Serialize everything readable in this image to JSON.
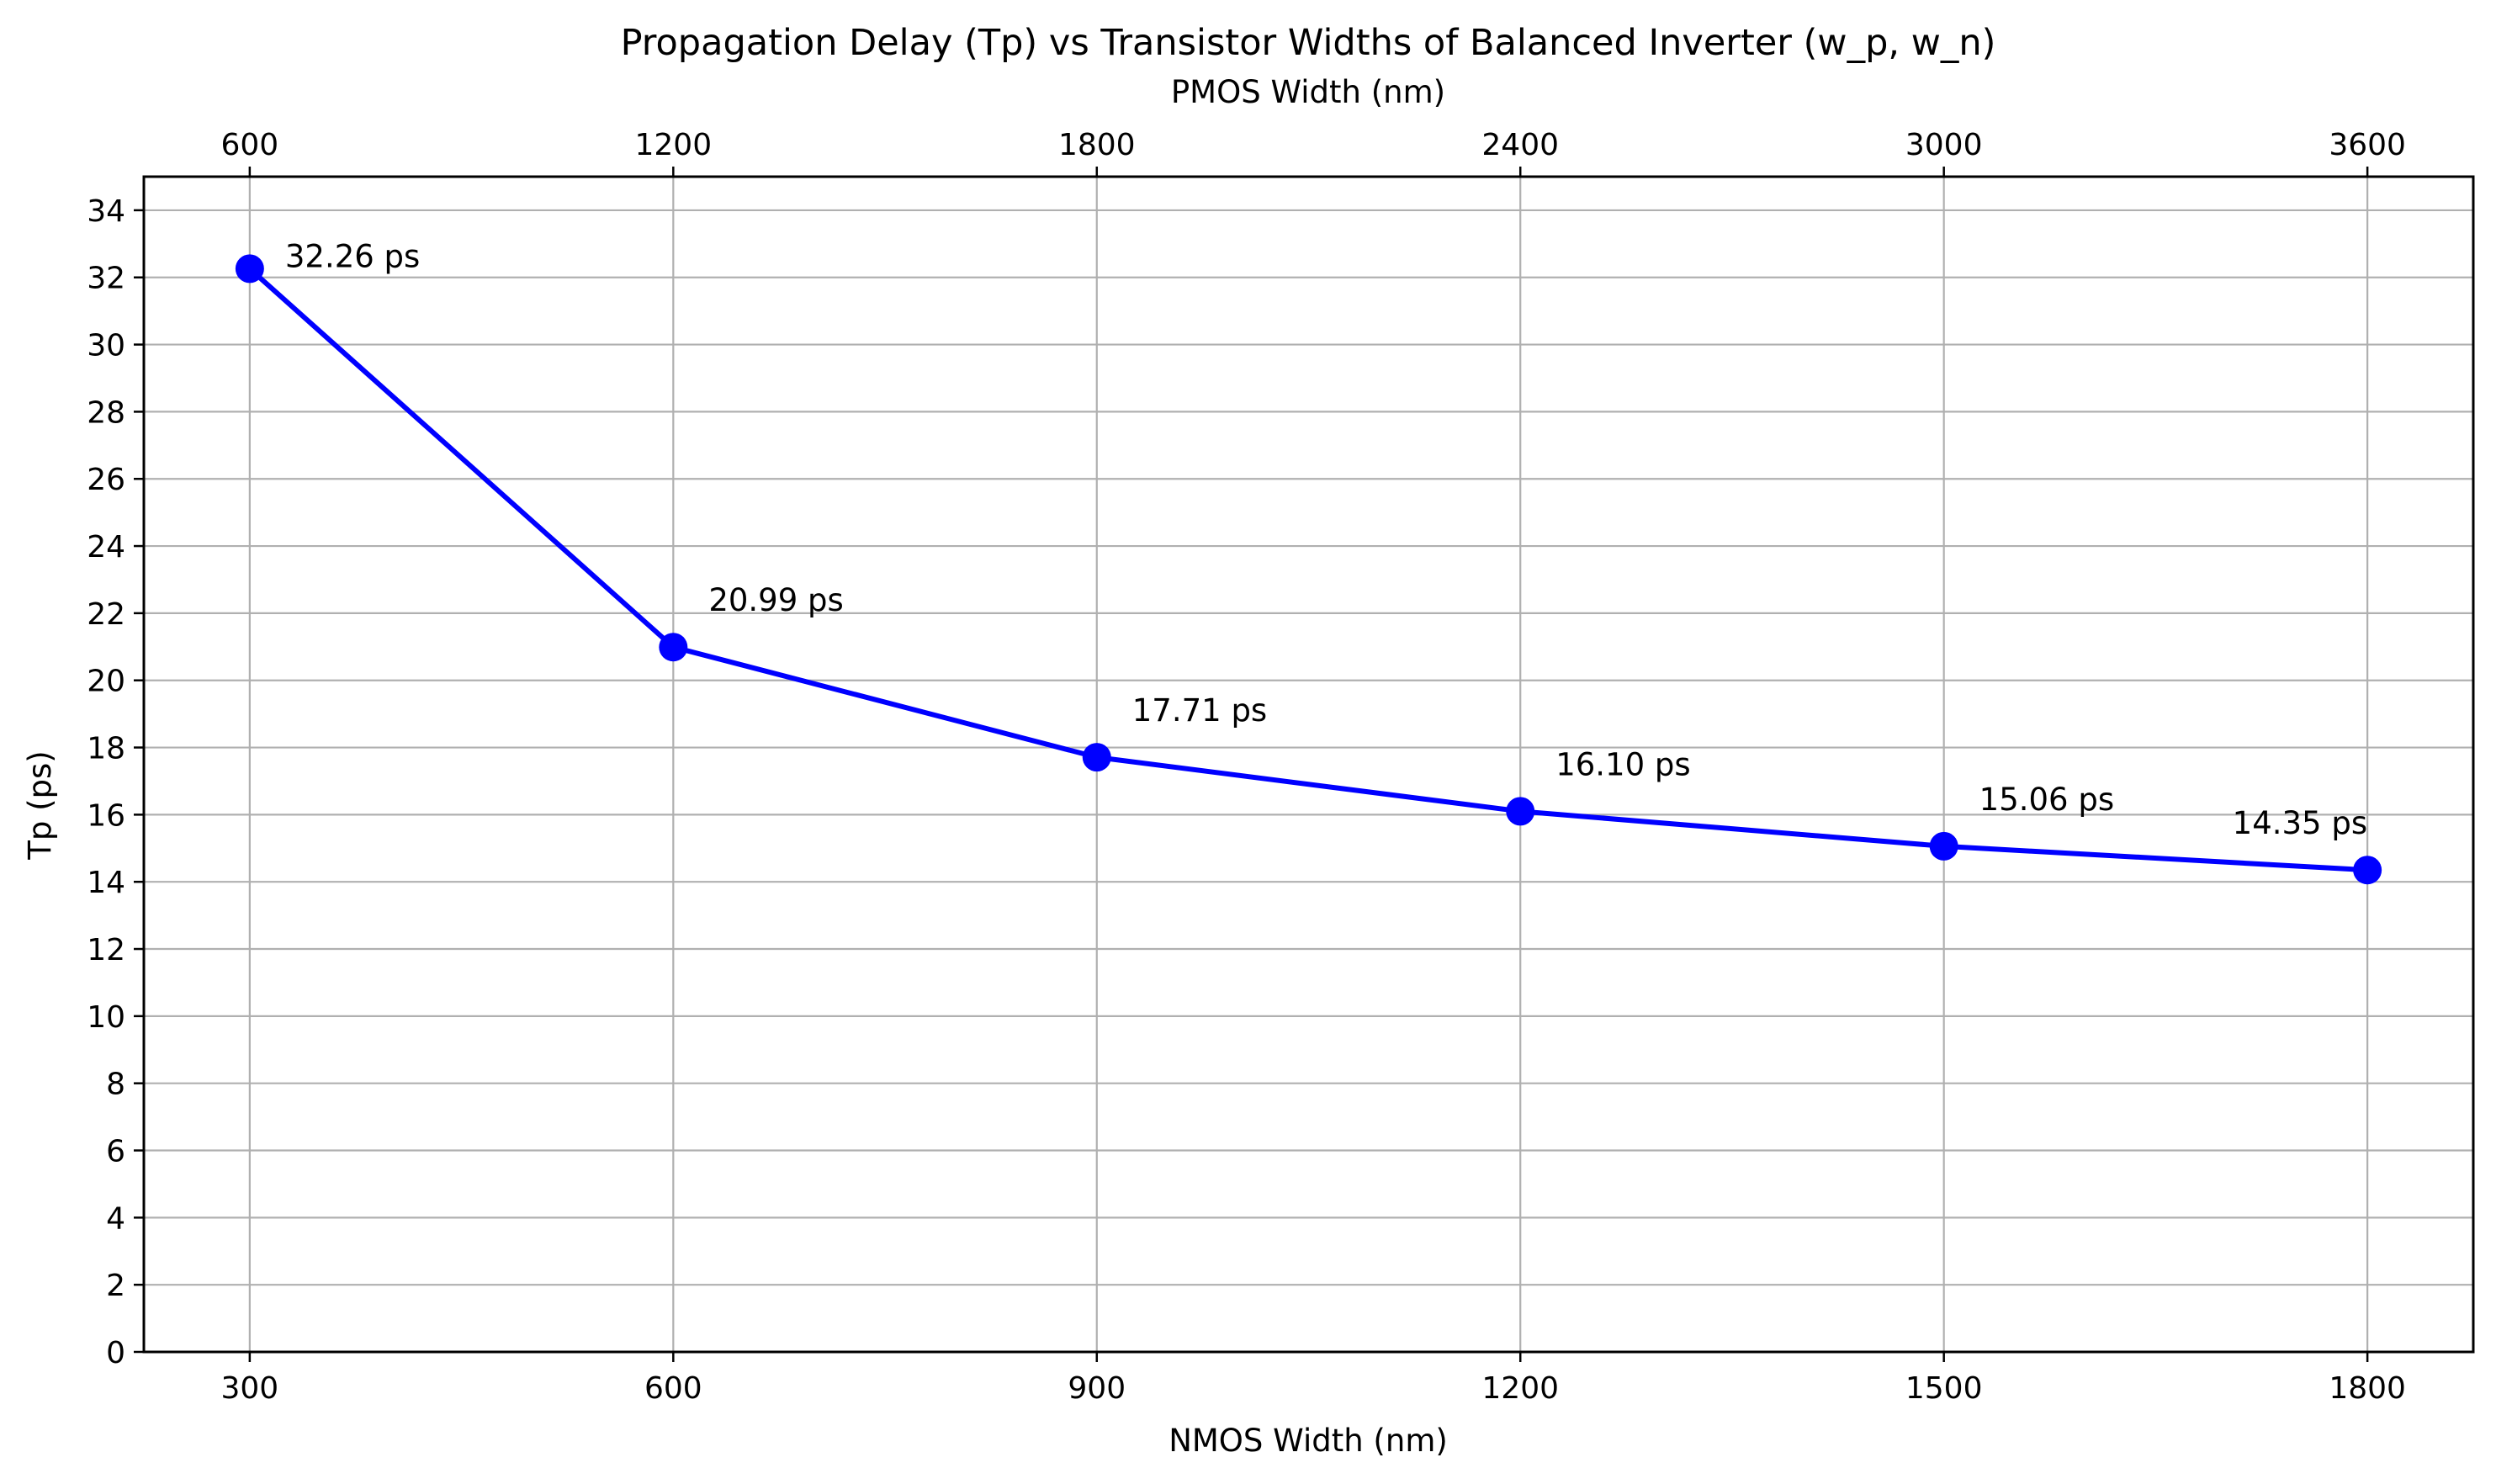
{
  "chart_data": {
    "type": "line",
    "title": "Propagation Delay (Tp) vs Transistor Widths of Balanced Inverter (w_p, w_n)",
    "xlabel": "NMOS Width (nm)",
    "x2label": "PMOS Width (nm)",
    "ylabel": "Tp (ps)",
    "x": [
      300,
      600,
      900,
      1200,
      1500,
      1800
    ],
    "x2": [
      600,
      1200,
      1800,
      2400,
      3000,
      3600
    ],
    "xticks": [
      "300",
      "600",
      "900",
      "1200",
      "1500",
      "1800"
    ],
    "x2ticks": [
      "600",
      "1200",
      "1800",
      "2400",
      "3000",
      "3600"
    ],
    "yticks": [
      "0",
      "2",
      "4",
      "6",
      "8",
      "10",
      "12",
      "14",
      "16",
      "18",
      "20",
      "22",
      "24",
      "26",
      "28",
      "30",
      "32",
      "34"
    ],
    "series": [
      {
        "values": [
          32.26,
          20.99,
          17.71,
          16.1,
          15.06,
          14.35
        ],
        "color": "#0000ff",
        "marker": "circle"
      }
    ],
    "annotations": [
      "32.26 ps",
      "20.99 ps",
      "17.71 ps",
      "16.10 ps",
      "15.06 ps",
      "14.35 ps"
    ],
    "xlim": [
      225,
      1875
    ],
    "ylim": [
      0,
      35
    ],
    "grid": true,
    "colors": {
      "bottom_axis": "#0000ff",
      "top_axis": "#ff0000",
      "line": "#0000ff"
    }
  }
}
